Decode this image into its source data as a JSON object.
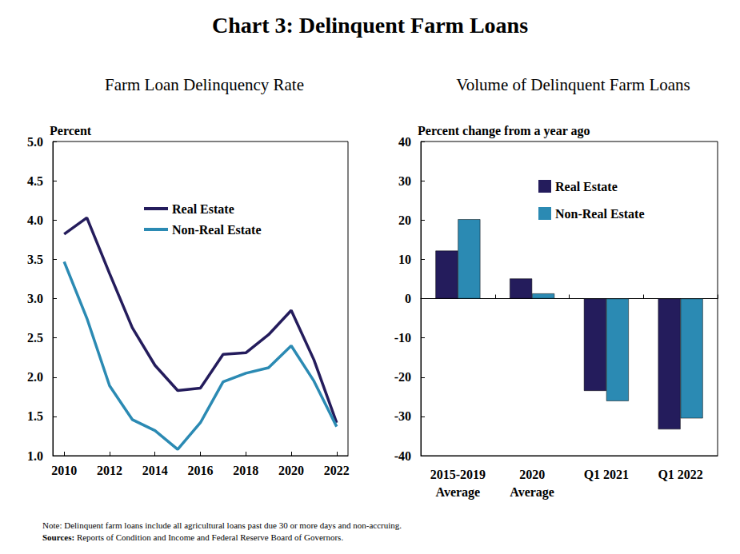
{
  "title": "Chart 3: Delinquent Farm Loans",
  "note": "Note: Delinquent farm loans include all agricultural loans past due 30 or more days and non-accruing.",
  "sources_label": "Sources:",
  "sources": "Reports of Condition and Income and Federal Reserve Board of Governors.",
  "chart_data": [
    {
      "type": "line",
      "title": "Farm Loan Delinquency Rate",
      "ylabel": "Percent",
      "x": [
        2010,
        2011,
        2012,
        2013,
        2014,
        2015,
        2016,
        2017,
        2018,
        2019,
        2020,
        2021,
        2022
      ],
      "series": [
        {
          "name": "Real Estate",
          "color": "#241c5c",
          "values": [
            3.82,
            4.03,
            3.32,
            2.63,
            2.15,
            1.83,
            1.86,
            2.29,
            2.31,
            2.54,
            2.85,
            2.22,
            1.42
          ]
        },
        {
          "name": "Non-Real Estate",
          "color": "#2b8ab3",
          "values": [
            3.47,
            2.75,
            1.89,
            1.46,
            1.32,
            1.08,
            1.42,
            1.94,
            2.05,
            2.12,
            2.4,
            1.95,
            1.37
          ]
        }
      ],
      "xlim": [
        2009.5,
        2022.5
      ],
      "xticks": [
        2010,
        2012,
        2014,
        2016,
        2018,
        2020,
        2022
      ],
      "ylim": [
        1,
        5
      ],
      "yticks": [
        {
          "value": 1,
          "label": "1.0"
        },
        1.5,
        {
          "value": 2,
          "label": "2.0"
        },
        2.5,
        {
          "value": 3,
          "label": "3.0"
        },
        3.5,
        {
          "value": 4,
          "label": "4.0"
        },
        4.5,
        {
          "value": 5,
          "label": "5.0"
        }
      ],
      "marker": "none",
      "grid": false,
      "legend": "upper center"
    },
    {
      "type": "bar",
      "title": "Volume of Delinquent Farm Loans",
      "ylabel": "Percent change from a year ago",
      "categories": [
        "2015-2019\nAverage",
        "2020\nAverage",
        "Q1 2021",
        "Q1 2022"
      ],
      "series": [
        {
          "name": "Real Estate",
          "color": "#241c5c",
          "values": [
            12.2,
            5.1,
            -23.5,
            -33.3
          ]
        },
        {
          "name": "Non-Real Estate",
          "color": "#2b8ab3",
          "values": [
            20.2,
            1.3,
            -26.1,
            -30.5
          ]
        }
      ],
      "ylim": [
        -40,
        40
      ],
      "yticks": [
        -40,
        -30,
        -20,
        -10,
        0,
        10,
        20,
        30,
        40
      ],
      "grid": false,
      "legend": "upper center"
    }
  ]
}
